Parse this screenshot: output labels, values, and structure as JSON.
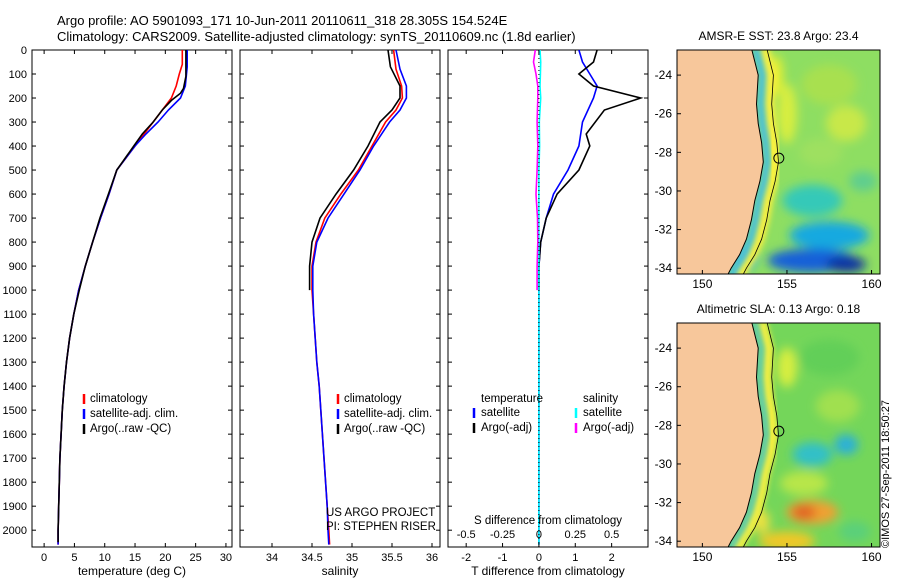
{
  "header": {
    "line1": "Argo profile: AO 5901093_171 10-Jun-2011 20110611_318 28.305S 154.524E",
    "line2": "Climatology: CARS2009. Satellite-adjusted climatology: synTS_20110609.nc (1.8d earlier)"
  },
  "watermark": "©IMOS 27-Sep-2011 18:50:27",
  "colors": {
    "climatology": "#ff0000",
    "satellite": "#0000ff",
    "argo": "#000000",
    "sat_sal": "#00ffff",
    "argo_sal": "#ff00ff",
    "land": "#f7c79b"
  },
  "chart_data": [
    {
      "type": "line",
      "name": "temperature-profile",
      "xlabel": "temperature (deg C)",
      "xlim": [
        -2,
        31
      ],
      "xticks": [
        0,
        5,
        10,
        15,
        20,
        25,
        30
      ],
      "ylim": [
        2070,
        0
      ],
      "yticks": [
        0,
        100,
        200,
        300,
        400,
        500,
        600,
        700,
        800,
        900,
        1000,
        1100,
        1200,
        1300,
        1400,
        1500,
        1600,
        1700,
        1800,
        1900,
        2000
      ],
      "legend": [
        "climatology",
        "satellite-adj. clim.",
        "Argo(..raw -QC)"
      ],
      "legend_position": "lower-left",
      "series": [
        {
          "name": "climatology",
          "color": "#ff0000",
          "points": [
            [
              22.8,
              0
            ],
            [
              22.8,
              60
            ],
            [
              22.3,
              100
            ],
            [
              21.8,
              150
            ],
            [
              21,
              200
            ],
            [
              19.5,
              250
            ],
            [
              18,
              300
            ],
            [
              16.5,
              350
            ],
            [
              15,
              400
            ],
            [
              13.5,
              450
            ],
            [
              12,
              500
            ],
            [
              10.7,
              600
            ],
            [
              9.3,
              700
            ],
            [
              8,
              800
            ],
            [
              6.8,
              900
            ],
            [
              5.7,
              1000
            ],
            [
              4.9,
              1100
            ],
            [
              4.2,
              1200
            ],
            [
              3.7,
              1300
            ],
            [
              3.3,
              1400
            ],
            [
              3,
              1500
            ],
            [
              2.8,
              1600
            ],
            [
              2.6,
              1700
            ],
            [
              2.5,
              1800
            ],
            [
              2.4,
              1900
            ],
            [
              2.3,
              2000
            ],
            [
              2.3,
              2060
            ]
          ]
        },
        {
          "name": "satellite-adj. clim.",
          "color": "#0000ff",
          "points": [
            [
              23.6,
              0
            ],
            [
              23.6,
              70
            ],
            [
              23.5,
              100
            ],
            [
              23.3,
              150
            ],
            [
              22.5,
              200
            ],
            [
              20.5,
              250
            ],
            [
              18.8,
              300
            ],
            [
              16.8,
              350
            ],
            [
              15,
              400
            ],
            [
              13.5,
              450
            ],
            [
              12,
              500
            ],
            [
              10.7,
              600
            ],
            [
              9.3,
              700
            ],
            [
              8,
              800
            ],
            [
              6.8,
              900
            ],
            [
              5.7,
              1000
            ],
            [
              4.9,
              1100
            ],
            [
              4.2,
              1200
            ],
            [
              3.7,
              1300
            ],
            [
              3.3,
              1400
            ],
            [
              3,
              1500
            ],
            [
              2.8,
              1600
            ],
            [
              2.6,
              1700
            ],
            [
              2.5,
              1800
            ],
            [
              2.4,
              1900
            ],
            [
              2.3,
              2000
            ],
            [
              2.3,
              2060
            ]
          ]
        },
        {
          "name": "Argo(..raw -QC)",
          "color": "#000000",
          "points": [
            [
              23.4,
              0
            ],
            [
              23.4,
              110
            ],
            [
              23,
              160
            ],
            [
              22.5,
              180
            ],
            [
              21,
              210
            ],
            [
              19.5,
              250
            ],
            [
              18,
              300
            ],
            [
              16.2,
              350
            ],
            [
              14.8,
              400
            ],
            [
              13.4,
              450
            ],
            [
              12,
              500
            ],
            [
              10.6,
              600
            ],
            [
              9.2,
              700
            ],
            [
              8,
              800
            ],
            [
              6.8,
              900
            ],
            [
              5.8,
              1000
            ],
            [
              4.9,
              1100
            ],
            [
              4.2,
              1200
            ],
            [
              3.7,
              1300
            ],
            [
              3.3,
              1400
            ],
            [
              3,
              1500
            ],
            [
              2.8,
              1600
            ],
            [
              2.6,
              1700
            ],
            [
              2.5,
              1800
            ],
            [
              2.4,
              1900
            ],
            [
              2.3,
              2000
            ],
            [
              2.3,
              2050
            ]
          ]
        }
      ]
    },
    {
      "type": "line",
      "name": "salinity-profile",
      "xlabel": "salinity",
      "xlim": [
        33.6,
        36.1
      ],
      "xticks": [
        34,
        34.5,
        35,
        35.5,
        36
      ],
      "ylim": [
        2070,
        0
      ],
      "legend": [
        "climatology",
        "satellite-adj. clim.",
        "Argo(..raw -QC)"
      ],
      "legend_position": "lower-right",
      "annotation": [
        "US ARGO PROJECT",
        "PI: STEPHEN RISER"
      ],
      "series": [
        {
          "name": "climatology",
          "color": "#ff0000",
          "points": [
            [
              35.52,
              0
            ],
            [
              35.55,
              80
            ],
            [
              35.62,
              150
            ],
            [
              35.63,
              200
            ],
            [
              35.55,
              250
            ],
            [
              35.42,
              300
            ],
            [
              35.25,
              400
            ],
            [
              35.08,
              500
            ],
            [
              34.86,
              600
            ],
            [
              34.66,
              700
            ],
            [
              34.55,
              800
            ],
            [
              34.5,
              900
            ],
            [
              34.5,
              1000
            ],
            [
              34.52,
              1100
            ],
            [
              34.54,
              1200
            ],
            [
              34.56,
              1300
            ],
            [
              34.59,
              1400
            ],
            [
              34.61,
              1500
            ],
            [
              34.63,
              1600
            ],
            [
              34.65,
              1700
            ],
            [
              34.67,
              1800
            ],
            [
              34.69,
              1900
            ],
            [
              34.71,
              2000
            ],
            [
              34.72,
              2060
            ]
          ]
        },
        {
          "name": "satellite-adj. clim.",
          "color": "#0000ff",
          "points": [
            [
              35.55,
              0
            ],
            [
              35.6,
              80
            ],
            [
              35.68,
              150
            ],
            [
              35.68,
              200
            ],
            [
              35.6,
              250
            ],
            [
              35.47,
              300
            ],
            [
              35.27,
              400
            ],
            [
              35.1,
              500
            ],
            [
              34.9,
              600
            ],
            [
              34.7,
              700
            ],
            [
              34.56,
              800
            ],
            [
              34.51,
              900
            ],
            [
              34.51,
              1000
            ],
            [
              34.52,
              1100
            ],
            [
              34.54,
              1200
            ],
            [
              34.56,
              1300
            ],
            [
              34.59,
              1400
            ],
            [
              34.61,
              1500
            ],
            [
              34.63,
              1600
            ],
            [
              34.65,
              1700
            ],
            [
              34.67,
              1800
            ],
            [
              34.69,
              1900
            ],
            [
              34.7,
              2000
            ],
            [
              34.71,
              2060
            ]
          ]
        },
        {
          "name": "Argo(..raw -QC)",
          "color": "#000000",
          "points": [
            [
              35.45,
              0
            ],
            [
              35.48,
              70
            ],
            [
              35.6,
              150
            ],
            [
              35.6,
              200
            ],
            [
              35.5,
              250
            ],
            [
              35.35,
              300
            ],
            [
              35.2,
              400
            ],
            [
              35.02,
              500
            ],
            [
              34.8,
              600
            ],
            [
              34.6,
              700
            ],
            [
              34.5,
              800
            ],
            [
              34.47,
              900
            ],
            [
              34.47,
              1000
            ]
          ]
        }
      ]
    },
    {
      "type": "line",
      "name": "difference-profile",
      "xlabel": "T difference from climatology",
      "xlabel_top": "S difference from climatology",
      "xlim": [
        -2.5,
        3
      ],
      "xticks": [
        -2,
        -1,
        0,
        1,
        2
      ],
      "top_xticks": [
        -0.5,
        -0.25,
        0,
        0.25,
        0.5
      ],
      "ylim": [
        2070,
        0
      ],
      "legend_temperature": {
        "title": "temperature",
        "items": [
          "satellite",
          "Argo(-adj)"
        ]
      },
      "legend_salinity": {
        "title": "salinity",
        "items": [
          "satellite",
          "Argo(-adj)"
        ]
      },
      "series": [
        {
          "name": "T satellite",
          "color": "#0000ff",
          "points": [
            [
              1.1,
              0
            ],
            [
              1.2,
              50
            ],
            [
              1.4,
              100
            ],
            [
              1.6,
              150
            ],
            [
              1.5,
              200
            ],
            [
              1.2,
              300
            ],
            [
              1.1,
              400
            ],
            [
              0.8,
              500
            ],
            [
              0.4,
              600
            ],
            [
              0.2,
              700
            ],
            [
              0.05,
              800
            ],
            [
              0,
              900
            ],
            [
              0,
              1000
            ],
            [
              0,
              1100
            ],
            [
              0,
              1500
            ],
            [
              0,
              2060
            ]
          ]
        },
        {
          "name": "T Argo(-adj)",
          "color": "#000000",
          "points": [
            [
              1.6,
              0
            ],
            [
              1.5,
              50
            ],
            [
              1.1,
              100
            ],
            [
              1.5,
              150
            ],
            [
              2.8,
              200
            ],
            [
              1.8,
              250
            ],
            [
              1.3,
              350
            ],
            [
              1.4,
              400
            ],
            [
              1.1,
              500
            ],
            [
              0.5,
              600
            ],
            [
              0.2,
              700
            ],
            [
              0.05,
              800
            ],
            [
              0,
              900
            ],
            [
              0,
              1000
            ]
          ]
        },
        {
          "name": "S satellite",
          "color": "#00ffff",
          "points": [
            [
              0.03,
              0
            ],
            [
              0.05,
              50
            ],
            [
              0.04,
              100
            ],
            [
              0.03,
              150
            ],
            [
              0.05,
              200
            ],
            [
              0.01,
              300
            ],
            [
              0.02,
              400
            ],
            [
              0,
              500
            ],
            [
              0,
              600
            ],
            [
              0,
              700
            ],
            [
              0,
              800
            ],
            [
              0,
              900
            ],
            [
              0,
              1000
            ],
            [
              0,
              1500
            ],
            [
              0,
              2060
            ]
          ]
        },
        {
          "name": "S Argo(-adj)",
          "color": "#ff00ff",
          "points": [
            [
              -0.1,
              0
            ],
            [
              -0.15,
              50
            ],
            [
              -0.08,
              100
            ],
            [
              -0.03,
              150
            ],
            [
              -0.03,
              200
            ],
            [
              -0.05,
              300
            ],
            [
              -0.03,
              400
            ],
            [
              -0.05,
              500
            ],
            [
              -0.08,
              600
            ],
            [
              -0.04,
              700
            ],
            [
              -0.03,
              800
            ],
            [
              -0.05,
              900
            ],
            [
              -0.05,
              1000
            ]
          ]
        }
      ]
    },
    {
      "type": "heatmap",
      "name": "sst-map",
      "title": "AMSR-E SST: 23.8 Argo: 23.4",
      "xlim": [
        148.5,
        160.5
      ],
      "ylim": [
        -34.3,
        -22.7
      ],
      "xticks": [
        150,
        155,
        160
      ],
      "yticks": [
        -24,
        -26,
        -28,
        -30,
        -32,
        -34
      ],
      "argo_position": [
        154.52,
        -28.3
      ]
    },
    {
      "type": "heatmap",
      "name": "sla-map",
      "title": "Altimetric SLA: 0.13 Argo: 0.18",
      "xlim": [
        148.5,
        160.5
      ],
      "ylim": [
        -34.3,
        -22.7
      ],
      "xticks": [
        150,
        155,
        160
      ],
      "yticks": [
        -24,
        -26,
        -28,
        -30,
        -32,
        -34
      ],
      "argo_position": [
        154.52,
        -28.3
      ]
    }
  ]
}
